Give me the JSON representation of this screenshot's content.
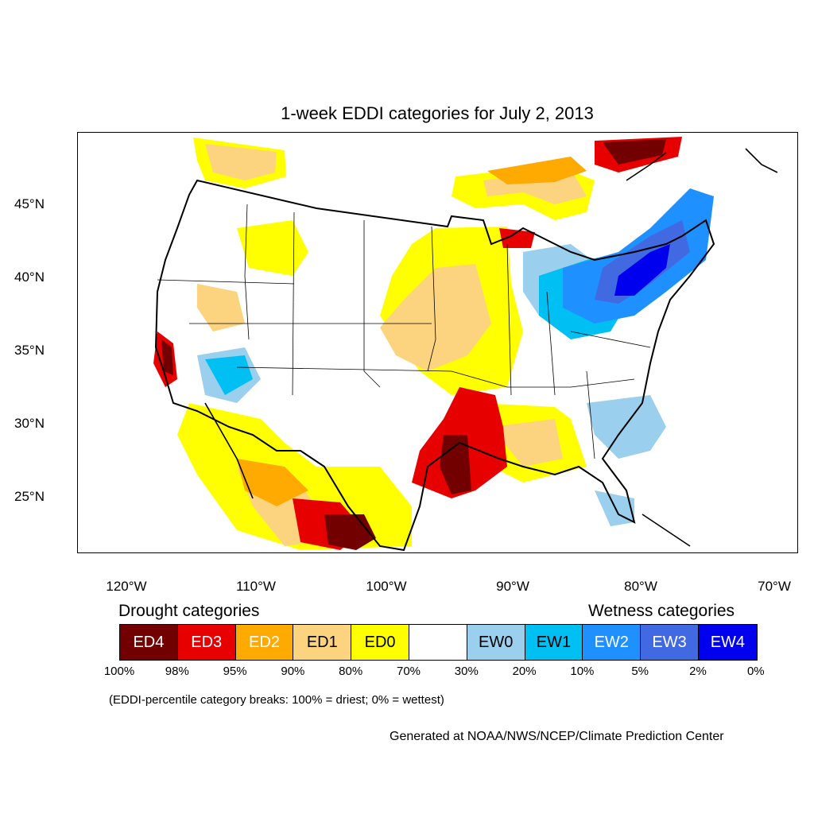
{
  "title": "1-week EDDI categories for July 2, 2013",
  "lat_labels": [
    "45°N",
    "40°N",
    "35°N",
    "30°N",
    "25°N"
  ],
  "lon_labels": [
    "120°W",
    "110°W",
    "100°W",
    "90°W",
    "80°W",
    "70°W"
  ],
  "legend": {
    "drought_heading": "Drought categories",
    "wetness_heading": "Wetness categories",
    "categories": [
      {
        "label": "ED4",
        "color": "#730000",
        "text_color": "#ffffff"
      },
      {
        "label": "ED3",
        "color": "#e60000",
        "text_color": "#ffffff"
      },
      {
        "label": "ED2",
        "color": "#ffaa00",
        "text_color": "#ffffff"
      },
      {
        "label": "ED1",
        "color": "#fcd37f",
        "text_color": "#000000"
      },
      {
        "label": "ED0",
        "color": "#ffff00",
        "text_color": "#000000"
      },
      {
        "label": "",
        "color": "#ffffff",
        "text_color": "#000000"
      },
      {
        "label": "EW0",
        "color": "#9bcfee",
        "text_color": "#000000"
      },
      {
        "label": "EW1",
        "color": "#00bff3",
        "text_color": "#000000"
      },
      {
        "label": "EW2",
        "color": "#1e90ff",
        "text_color": "#ffffff"
      },
      {
        "label": "EW3",
        "color": "#4169e1",
        "text_color": "#ffffff"
      },
      {
        "label": "EW4",
        "color": "#0000ee",
        "text_color": "#ffffff"
      }
    ],
    "percentiles": [
      "100%",
      "98%",
      "95%",
      "90%",
      "80%",
      "70%",
      "30%",
      "20%",
      "10%",
      "5%",
      "2%",
      "0%"
    ]
  },
  "note": "(EDDI-percentile category breaks: 100% = driest; 0% = wettest)",
  "credit": "Generated at NOAA/NWS/NCEP/Climate Prediction Center"
}
